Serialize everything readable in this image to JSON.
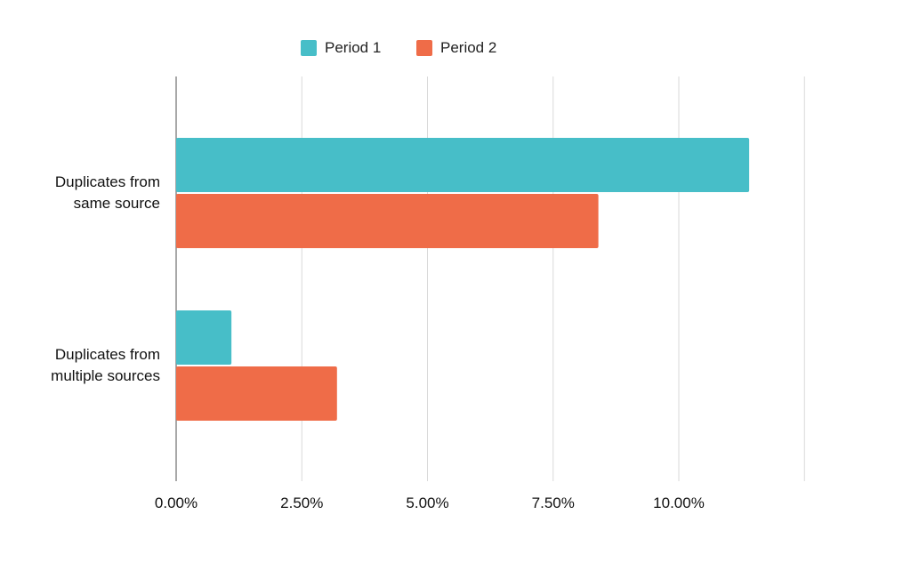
{
  "chart_data": {
    "type": "bar",
    "orientation": "horizontal",
    "categories": [
      [
        "Duplicates from",
        "same source"
      ],
      [
        "Duplicates from",
        "multiple sources"
      ]
    ],
    "series": [
      {
        "name": "Period 1",
        "color": "#47bec8",
        "values": [
          11.4,
          1.1
        ]
      },
      {
        "name": "Period 2",
        "color": "#ef6c48",
        "values": [
          8.4,
          3.2
        ]
      }
    ],
    "xtick_labels": [
      "0.00%",
      "2.50%",
      "5.00%",
      "7.50%",
      "10.00%"
    ],
    "xticks": [
      0,
      2.5,
      5,
      7.5,
      10
    ],
    "xlim": [
      0,
      12.5
    ],
    "grid": true,
    "legend_position": "top-center",
    "title": "",
    "xlabel": "",
    "ylabel": ""
  }
}
